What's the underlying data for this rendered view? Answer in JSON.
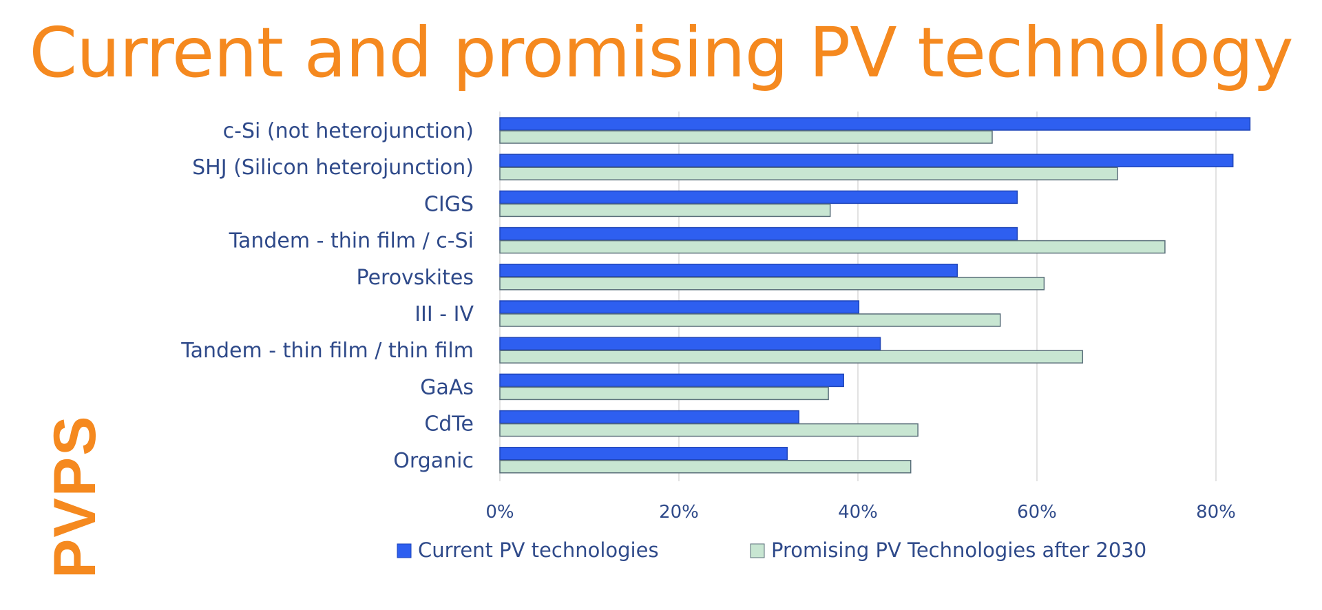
{
  "chart_data": {
    "type": "bar",
    "orientation": "horizontal",
    "title": "Current and promising PV technology",
    "logo_text": "PVPS",
    "categories": [
      "c-Si (not heterojunction)",
      "SHJ (Silicon heterojunction)",
      "CIGS",
      "Tandem - thin film / c-Si",
      "Perovskites",
      "III - IV",
      "Tandem - thin film / thin film",
      "GaAs",
      "CdTe",
      "Organic"
    ],
    "series": [
      {
        "name": "Current PV technologies",
        "color": "#2e5ff0",
        "values": [
          83.8,
          81.9,
          57.8,
          57.8,
          51.1,
          40.1,
          42.5,
          38.4,
          33.4,
          32.1
        ]
      },
      {
        "name": "Promising PV Technologies after 2030",
        "color": "#c8e6d2",
        "values": [
          55.0,
          69.0,
          36.9,
          74.3,
          60.8,
          55.9,
          65.1,
          36.7,
          46.7,
          45.9
        ]
      }
    ],
    "xlim": [
      0,
      85
    ],
    "xticks": [
      "0%",
      "20%",
      "40%",
      "60%",
      "80%"
    ],
    "grid": true,
    "legend": "bottom",
    "title_color": "#f5891f"
  }
}
